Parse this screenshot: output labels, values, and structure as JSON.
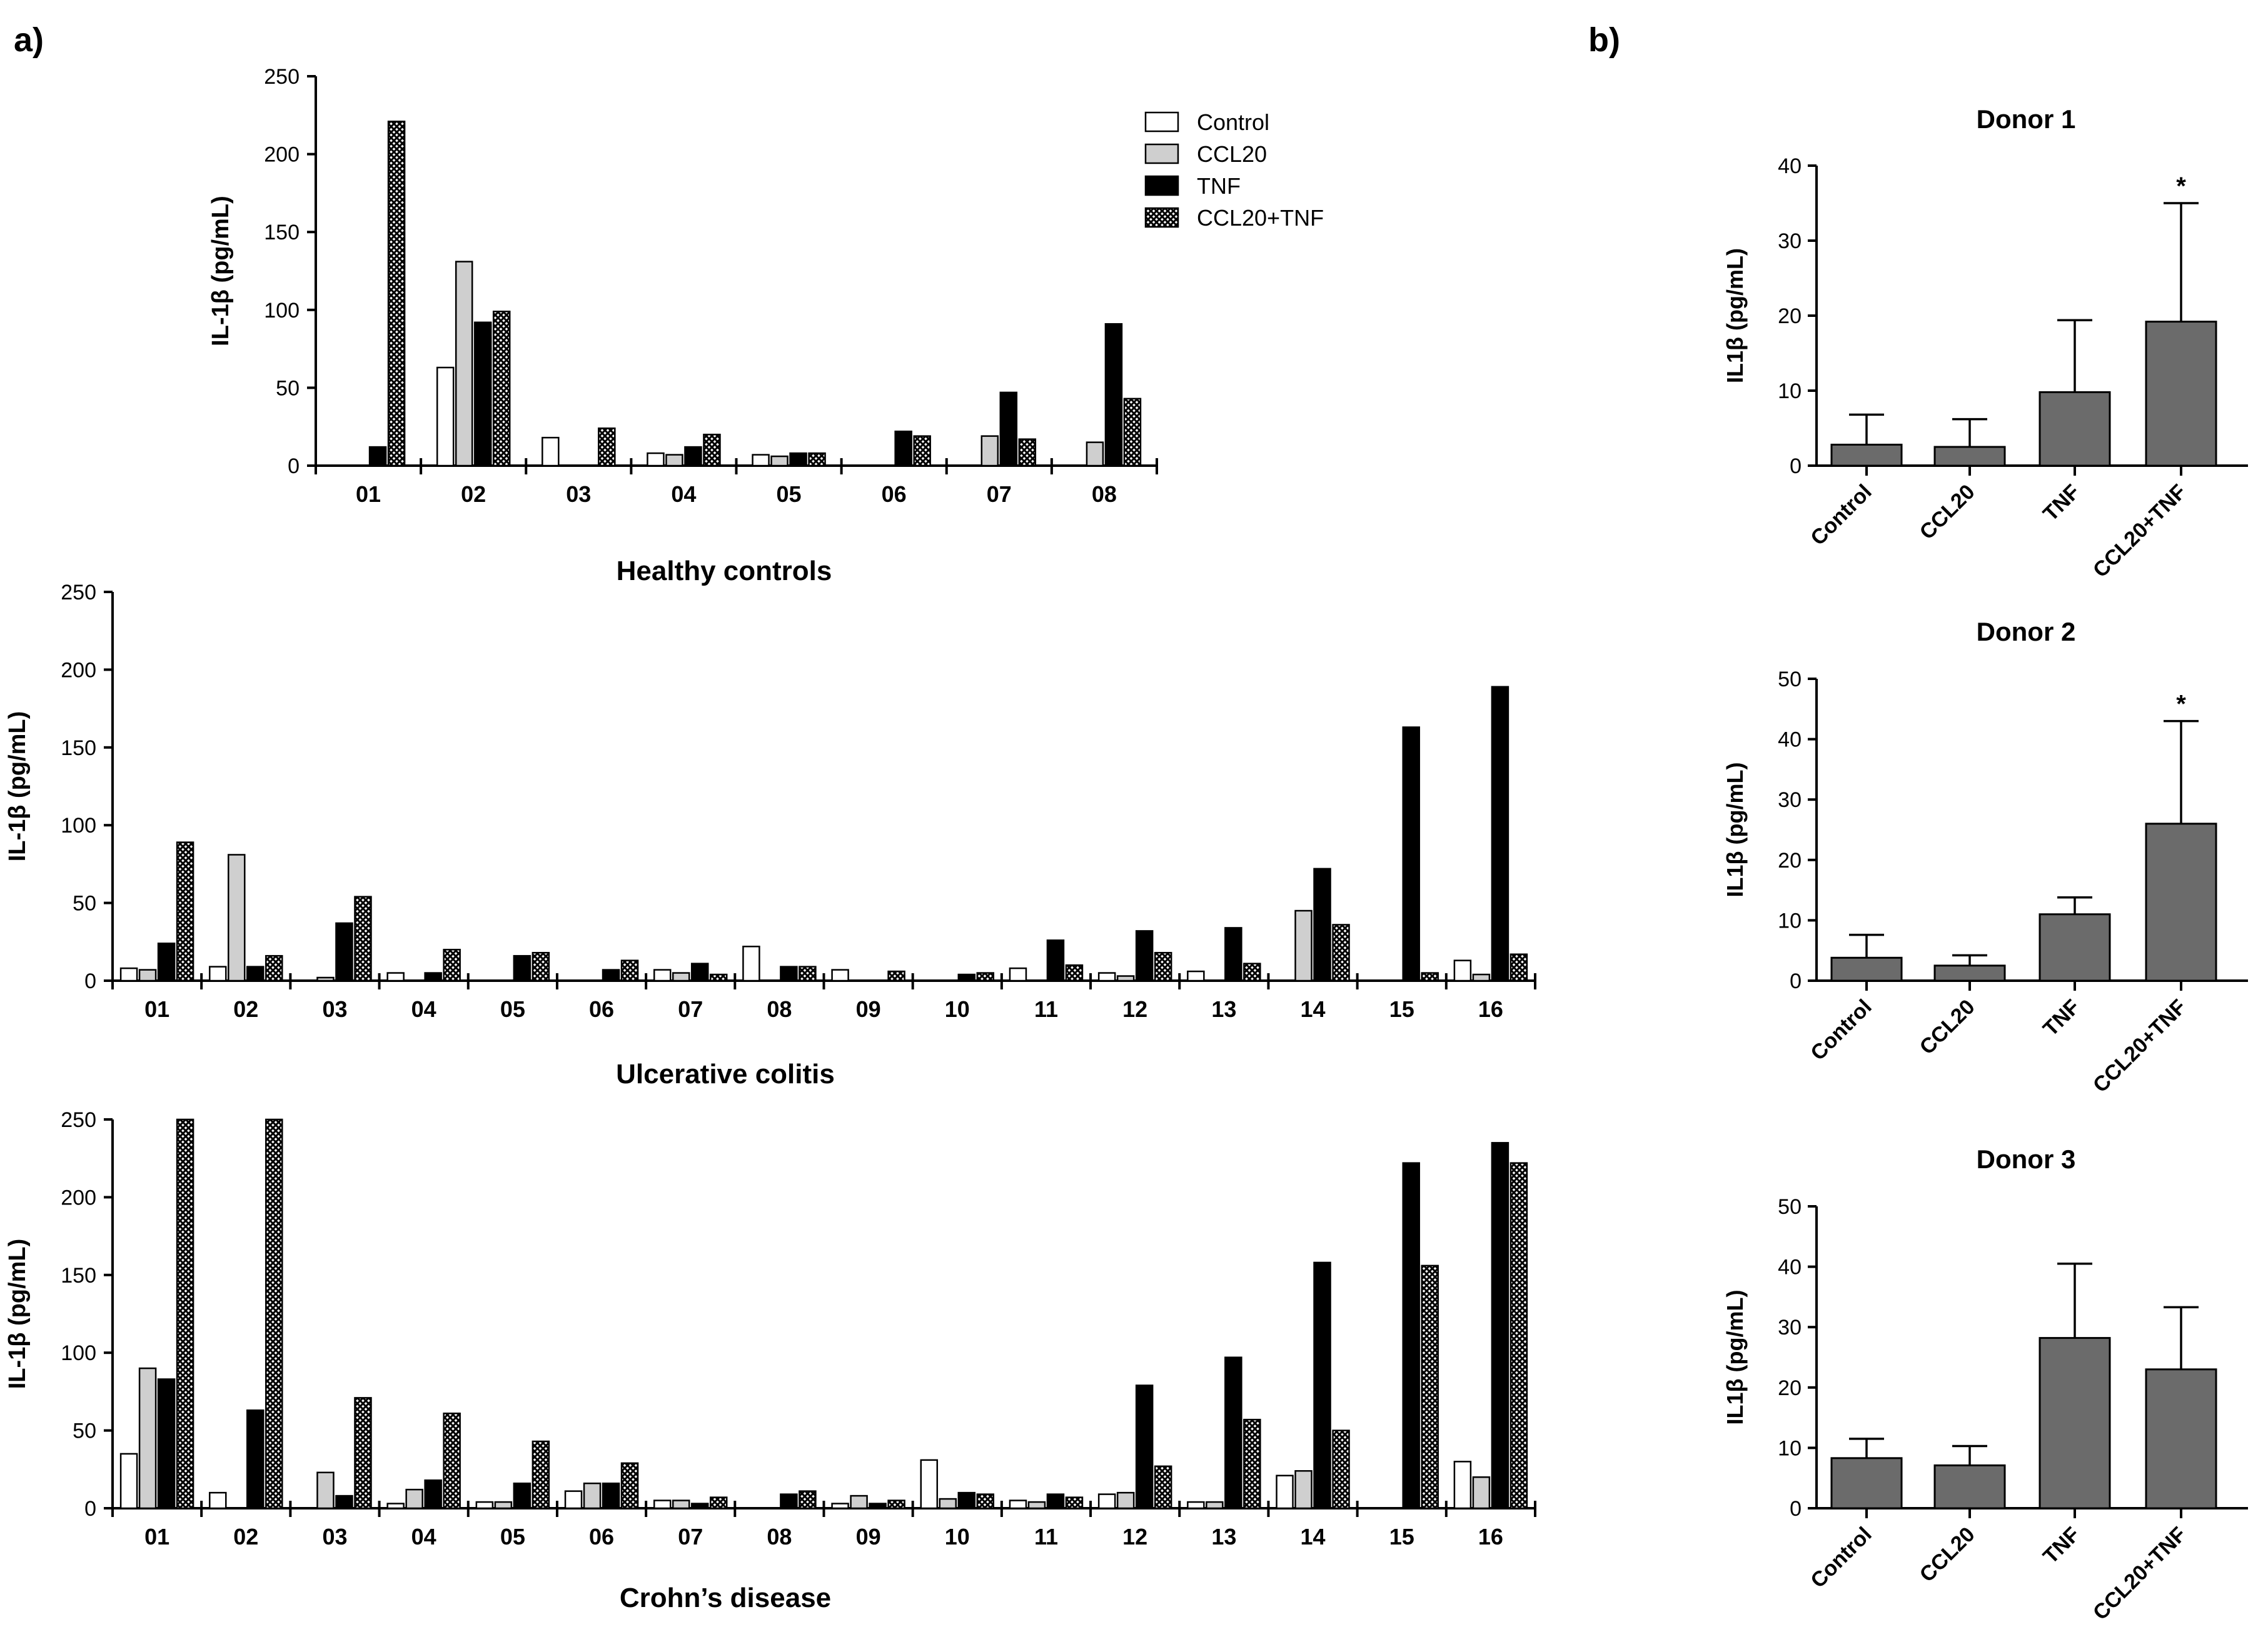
{
  "panel_labels": [
    "a)",
    "b)"
  ],
  "legend": [
    {
      "name": "Control",
      "pattern": "white"
    },
    {
      "name": "CCL20",
      "pattern": "lightgrey"
    },
    {
      "name": "TNF",
      "pattern": "black"
    },
    {
      "name": "CCL20+TNF",
      "pattern": "hatch"
    }
  ],
  "colors": {
    "light_grey": "#cfcfcf",
    "black": "#000000",
    "bar_grey": "#6b6b6b",
    "white": "#ffffff"
  },
  "chart_data": [
    {
      "type": "bar",
      "panel": "a",
      "title": "Healthy controls",
      "ylabel": "IL-1β (pg/mL)",
      "ylim": [
        0,
        250
      ],
      "yticks": [
        0,
        50,
        100,
        150,
        200,
        250
      ],
      "categories": [
        "01",
        "02",
        "03",
        "04",
        "05",
        "06",
        "07",
        "08"
      ],
      "series": [
        {
          "name": "Control",
          "values": [
            0,
            63,
            18,
            8,
            7,
            0,
            0,
            0
          ]
        },
        {
          "name": "CCL20",
          "values": [
            0,
            131,
            0,
            7,
            6,
            0,
            19,
            15
          ]
        },
        {
          "name": "TNF",
          "values": [
            12,
            92,
            0,
            12,
            8,
            22,
            47,
            91
          ]
        },
        {
          "name": "CCL20+TNF",
          "values": [
            221,
            99,
            24,
            20,
            8,
            19,
            17,
            43
          ]
        }
      ]
    },
    {
      "type": "bar",
      "panel": "a",
      "title": "Ulcerative colitis",
      "ylabel": "IL-1β (pg/mL)",
      "ylim": [
        0,
        250
      ],
      "yticks": [
        0,
        50,
        100,
        150,
        200,
        250
      ],
      "categories": [
        "01",
        "02",
        "03",
        "04",
        "05",
        "06",
        "07",
        "08",
        "09",
        "10",
        "11",
        "12",
        "13",
        "14",
        "15",
        "16"
      ],
      "series": [
        {
          "name": "Control",
          "values": [
            8,
            9,
            0,
            5,
            0,
            0,
            7,
            22,
            7,
            0,
            8,
            5,
            6,
            0,
            0,
            13
          ]
        },
        {
          "name": "CCL20",
          "values": [
            7,
            81,
            2,
            0,
            0,
            0,
            5,
            0,
            0,
            0,
            0,
            3,
            0,
            45,
            0,
            4
          ]
        },
        {
          "name": "TNF",
          "values": [
            24,
            9,
            37,
            5,
            16,
            7,
            11,
            9,
            0,
            4,
            26,
            32,
            34,
            72,
            163,
            189
          ]
        },
        {
          "name": "CCL20+TNF",
          "values": [
            89,
            16,
            54,
            20,
            18,
            13,
            4,
            9,
            6,
            5,
            10,
            18,
            11,
            36,
            5,
            17
          ]
        }
      ]
    },
    {
      "type": "bar",
      "panel": "a",
      "title": "Crohn’s disease",
      "ylabel": "IL-1β (pg/mL)",
      "ylim": [
        0,
        250
      ],
      "yticks": [
        0,
        50,
        100,
        150,
        200,
        250
      ],
      "categories": [
        "01",
        "02",
        "03",
        "04",
        "05",
        "06",
        "07",
        "08",
        "09",
        "10",
        "11",
        "12",
        "13",
        "14",
        "15",
        "16"
      ],
      "series": [
        {
          "name": "Control",
          "values": [
            35,
            10,
            0,
            3,
            4,
            11,
            5,
            0,
            3,
            31,
            5,
            9,
            4,
            21,
            0,
            30
          ]
        },
        {
          "name": "CCL20",
          "values": [
            90,
            0,
            23,
            12,
            4,
            16,
            5,
            0,
            8,
            6,
            4,
            10,
            4,
            24,
            0,
            20
          ]
        },
        {
          "name": "TNF",
          "values": [
            83,
            63,
            8,
            18,
            16,
            16,
            3,
            9,
            3,
            10,
            9,
            79,
            97,
            158,
            222,
            235
          ]
        },
        {
          "name": "CCL20+TNF",
          "values": [
            250,
            250,
            71,
            61,
            43,
            29,
            7,
            11,
            5,
            9,
            7,
            27,
            57,
            50,
            156,
            222
          ]
        }
      ]
    },
    {
      "type": "bar",
      "panel": "b",
      "title": "Donor 1",
      "ylabel": "IL1β (pg/mL)",
      "ylim": [
        0,
        40
      ],
      "yticks": [
        0,
        10,
        20,
        30,
        40
      ],
      "categories": [
        "Control",
        "CCL20",
        "TNF",
        "CCL20+TNF"
      ],
      "values": [
        2.8,
        2.5,
        9.8,
        19.2
      ],
      "errors": [
        4.0,
        3.7,
        9.6,
        15.8
      ],
      "significance": [
        "",
        "",
        "",
        "*"
      ]
    },
    {
      "type": "bar",
      "panel": "b",
      "title": "Donor 2",
      "ylabel": "IL1β (pg/mL)",
      "ylim": [
        0,
        50
      ],
      "yticks": [
        0,
        10,
        20,
        30,
        40,
        50
      ],
      "categories": [
        "Control",
        "CCL20",
        "TNF",
        "CCL20+TNF"
      ],
      "values": [
        3.8,
        2.5,
        11.0,
        26.0
      ],
      "errors": [
        3.8,
        1.7,
        2.8,
        17.0
      ],
      "significance": [
        "",
        "",
        "",
        "*"
      ]
    },
    {
      "type": "bar",
      "panel": "b",
      "title": "Donor 3",
      "ylabel": "IL1β (pg/mL)",
      "ylim": [
        0,
        50
      ],
      "yticks": [
        0,
        10,
        20,
        30,
        40,
        50
      ],
      "categories": [
        "Control",
        "CCL20",
        "TNF",
        "CCL20+TNF"
      ],
      "values": [
        8.3,
        7.1,
        28.2,
        23.0
      ],
      "errors": [
        3.2,
        3.2,
        12.3,
        10.3
      ],
      "significance": [
        "",
        "",
        "",
        ""
      ]
    }
  ]
}
